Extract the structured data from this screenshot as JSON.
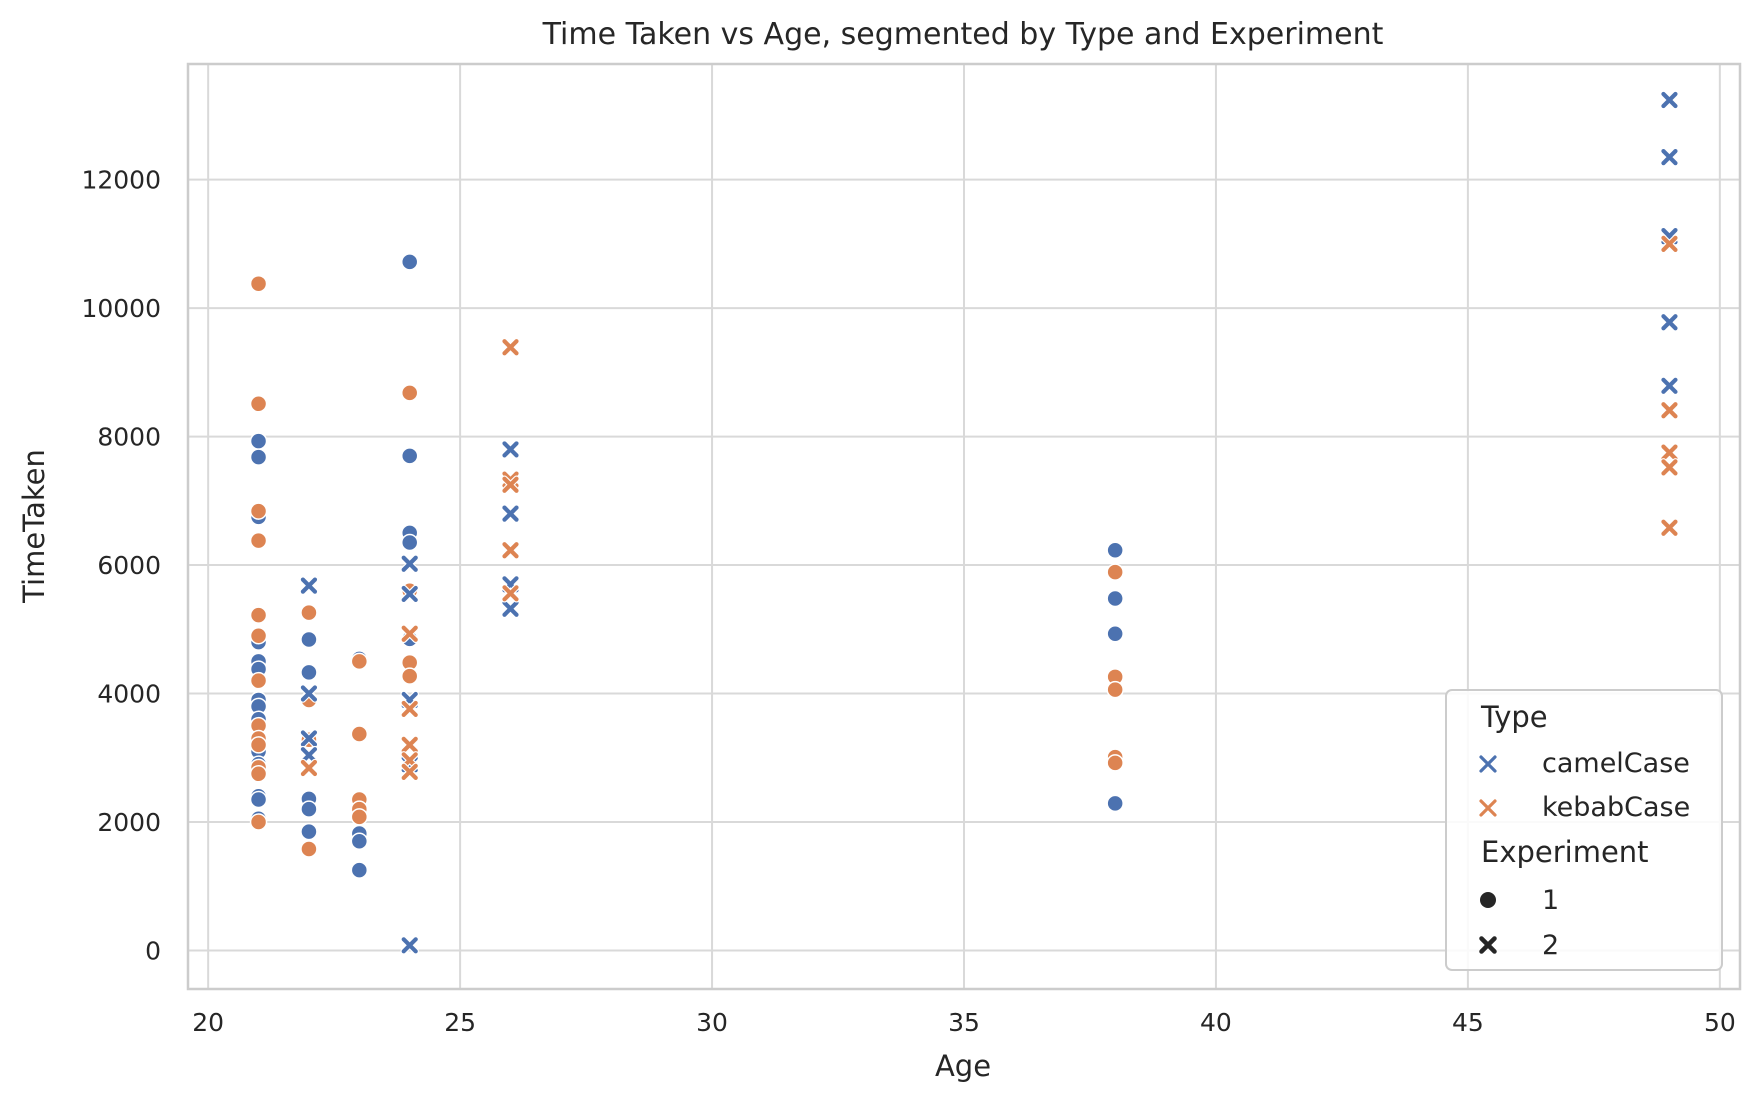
{
  "chart_data": {
    "type": "scatter",
    "title": "Time Taken vs Age, segmented by Type and Experiment",
    "xlabel": "Age",
    "ylabel": "TimeTaken",
    "xlim": [
      19.6,
      50.4
    ],
    "ylim": [
      -600,
      13800
    ],
    "xticks": [
      "20",
      "25",
      "30",
      "35",
      "40",
      "45",
      "50"
    ],
    "yticks": [
      "0",
      "2000",
      "4000",
      "6000",
      "8000",
      "10000",
      "12000"
    ],
    "grid": true,
    "legend": {
      "position": "lower-right",
      "hue_title": "Type",
      "style_title": "Experiment",
      "hue_entries": [
        {
          "label": "camelCase",
          "color": "#4c72b0"
        },
        {
          "label": "kebabCase",
          "color": "#dd8452"
        }
      ],
      "style_entries": [
        {
          "label": "1",
          "marker": "circle"
        },
        {
          "label": "2",
          "marker": "x"
        }
      ]
    },
    "series": [
      {
        "type": "camelCase",
        "experiment": "1",
        "color": "#4c72b0",
        "marker": "circle",
        "points": [
          [
            21,
            7930
          ],
          [
            21,
            7680
          ],
          [
            21,
            6750
          ],
          [
            21,
            4800
          ],
          [
            21,
            4500
          ],
          [
            21,
            4380
          ],
          [
            21,
            3900
          ],
          [
            21,
            3800
          ],
          [
            21,
            3600
          ],
          [
            21,
            3100
          ],
          [
            21,
            2900
          ],
          [
            21,
            2400
          ],
          [
            21,
            2350
          ],
          [
            21,
            2050
          ],
          [
            22,
            4840
          ],
          [
            22,
            4330
          ],
          [
            22,
            2360
          ],
          [
            22,
            2200
          ],
          [
            22,
            1850
          ],
          [
            23,
            4540
          ],
          [
            23,
            1820
          ],
          [
            23,
            1700
          ],
          [
            23,
            1250
          ],
          [
            24,
            10720
          ],
          [
            24,
            7700
          ],
          [
            24,
            6500
          ],
          [
            24,
            6350
          ],
          [
            24,
            4850
          ],
          [
            38,
            6230
          ],
          [
            38,
            5480
          ],
          [
            38,
            4930
          ],
          [
            38,
            2290
          ]
        ]
      },
      {
        "type": "kebabCase",
        "experiment": "1",
        "color": "#dd8452",
        "marker": "circle",
        "points": [
          [
            21,
            10380
          ],
          [
            21,
            8510
          ],
          [
            21,
            6840
          ],
          [
            21,
            6380
          ],
          [
            21,
            5220
          ],
          [
            21,
            4900
          ],
          [
            21,
            4200
          ],
          [
            21,
            3500
          ],
          [
            21,
            3300
          ],
          [
            21,
            3200
          ],
          [
            21,
            2850
          ],
          [
            21,
            2750
          ],
          [
            21,
            2000
          ],
          [
            22,
            5260
          ],
          [
            22,
            3900
          ],
          [
            22,
            3300
          ],
          [
            22,
            3280
          ],
          [
            22,
            1580
          ],
          [
            23,
            4500
          ],
          [
            23,
            3370
          ],
          [
            23,
            2350
          ],
          [
            23,
            2200
          ],
          [
            23,
            2080
          ],
          [
            24,
            8680
          ],
          [
            24,
            5600
          ],
          [
            24,
            4480
          ],
          [
            24,
            4270
          ],
          [
            38,
            5890
          ],
          [
            38,
            4260
          ],
          [
            38,
            4060
          ],
          [
            38,
            3010
          ],
          [
            38,
            2920
          ]
        ]
      },
      {
        "type": "camelCase",
        "experiment": "2",
        "color": "#4c72b0",
        "marker": "x",
        "points": [
          [
            22,
            5680
          ],
          [
            22,
            4000
          ],
          [
            22,
            3300
          ],
          [
            22,
            3040
          ],
          [
            24,
            6020
          ],
          [
            24,
            5550
          ],
          [
            24,
            3900
          ],
          [
            24,
            2900
          ],
          [
            24,
            80
          ],
          [
            26,
            7800
          ],
          [
            26,
            6800
          ],
          [
            26,
            5700
          ],
          [
            26,
            5320
          ],
          [
            49,
            13240
          ],
          [
            49,
            12350
          ],
          [
            49,
            11120
          ],
          [
            49,
            9780
          ],
          [
            49,
            8790
          ]
        ]
      },
      {
        "type": "kebabCase",
        "experiment": "2",
        "color": "#dd8452",
        "marker": "x",
        "points": [
          [
            22,
            2840
          ],
          [
            24,
            4930
          ],
          [
            24,
            3760
          ],
          [
            24,
            3200
          ],
          [
            24,
            2960
          ],
          [
            24,
            2780
          ],
          [
            26,
            9390
          ],
          [
            26,
            7330
          ],
          [
            26,
            7250
          ],
          [
            26,
            6230
          ],
          [
            26,
            5560
          ],
          [
            49,
            11000
          ],
          [
            49,
            8410
          ],
          [
            49,
            7750
          ],
          [
            49,
            7520
          ],
          [
            49,
            6580
          ]
        ]
      }
    ]
  }
}
